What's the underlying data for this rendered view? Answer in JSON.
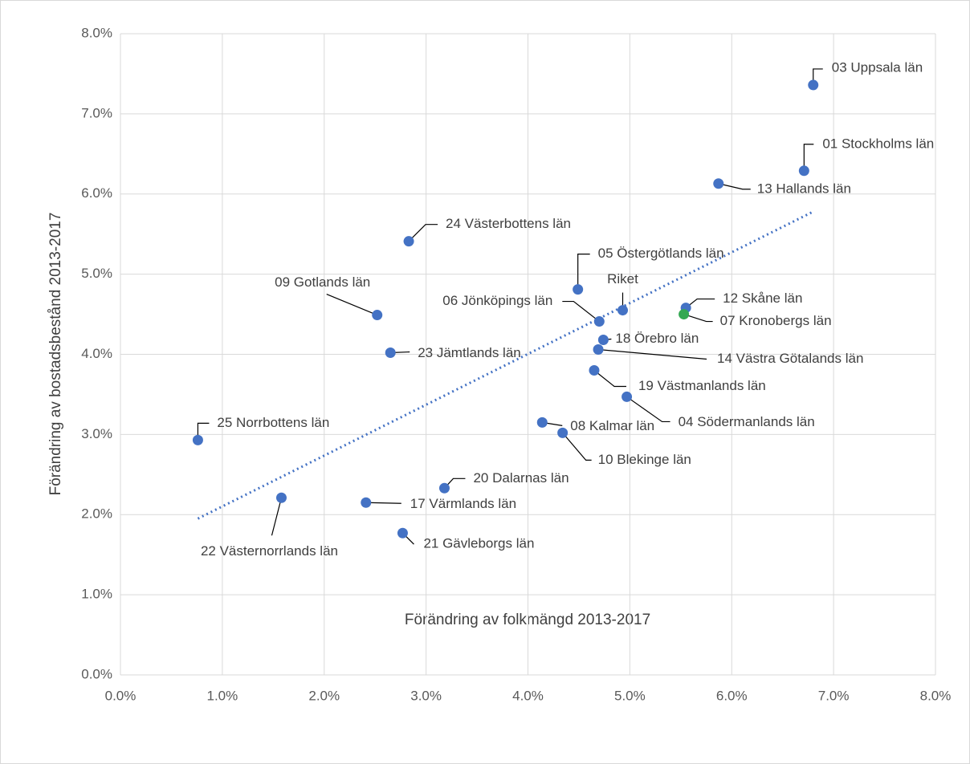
{
  "chart_data": {
    "type": "scatter",
    "x_label": "Förändring av folkmängd 2013-2017",
    "y_label": "Förändring av bostadsbestånd 2013-2017",
    "xlim": [
      0,
      8
    ],
    "ylim": [
      0,
      8
    ],
    "xticks": [
      {
        "value": 0,
        "label": "0.0%"
      },
      {
        "value": 1,
        "label": "1.0%"
      },
      {
        "value": 2,
        "label": "2.0%"
      },
      {
        "value": 3,
        "label": "3.0%"
      },
      {
        "value": 4,
        "label": "4.0%"
      },
      {
        "value": 5,
        "label": "5.0%"
      },
      {
        "value": 6,
        "label": "6.0%"
      },
      {
        "value": 7,
        "label": "7.0%"
      },
      {
        "value": 8,
        "label": "8.0%"
      }
    ],
    "yticks": [
      {
        "value": 0,
        "label": "0.0%"
      },
      {
        "value": 1,
        "label": "1.0%"
      },
      {
        "value": 2,
        "label": "2.0%"
      },
      {
        "value": 3,
        "label": "3.0%"
      },
      {
        "value": 4,
        "label": "4.0%"
      },
      {
        "value": 5,
        "label": "5.0%"
      },
      {
        "value": 6,
        "label": "6.0%"
      },
      {
        "value": 7,
        "label": "7.0%"
      },
      {
        "value": 8,
        "label": "8.0%"
      }
    ],
    "grid": true,
    "labels": [
      "03 Uppsala län",
      "01 Stockholms län",
      "13 Hallands län",
      "24 Västerbottens län",
      "05 Östergötlands län",
      "Riket",
      "12 Skåne län",
      "07 Kronobergs län",
      "09 Gotlands län",
      "06 Jönköpings län",
      "18 Örebro län",
      "14 Västra Götalands län",
      "23 Jämtlands län",
      "19 Västmanlands län",
      "04 Södermanlands län",
      "25 Norrbottens län",
      "08 Kalmar län",
      "10 Blekinge län",
      "20 Dalarnas län",
      "22 Västernorrlands län",
      "17 Värmlands län",
      "21 Gävleborgs län"
    ],
    "x": [
      6.8,
      6.71,
      5.87,
      2.83,
      4.49,
      4.93,
      5.55,
      5.53,
      2.52,
      4.7,
      4.74,
      4.69,
      2.65,
      4.65,
      4.97,
      0.76,
      4.14,
      4.34,
      3.18,
      1.58,
      2.41,
      2.77
    ],
    "values": [
      7.36,
      6.29,
      6.13,
      5.41,
      4.81,
      4.55,
      4.58,
      4.5,
      4.49,
      4.41,
      4.18,
      4.06,
      4.02,
      3.8,
      3.47,
      2.93,
      3.15,
      3.02,
      2.33,
      2.21,
      2.15,
      1.77
    ],
    "point_colors": [
      "#4472c4",
      "#4472c4",
      "#4472c4",
      "#4472c4",
      "#4472c4",
      "#4472c4",
      "#4472c4",
      "#33a852",
      "#4472c4",
      "#4472c4",
      "#4472c4",
      "#4472c4",
      "#4472c4",
      "#4472c4",
      "#4472c4",
      "#4472c4",
      "#4472c4",
      "#4472c4",
      "#4472c4",
      "#4472c4",
      "#4472c4",
      "#4472c4"
    ],
    "trendline": {
      "color": "#4472c4",
      "x": [
        0.76,
        6.8
      ],
      "values": [
        1.95,
        5.78
      ]
    }
  }
}
